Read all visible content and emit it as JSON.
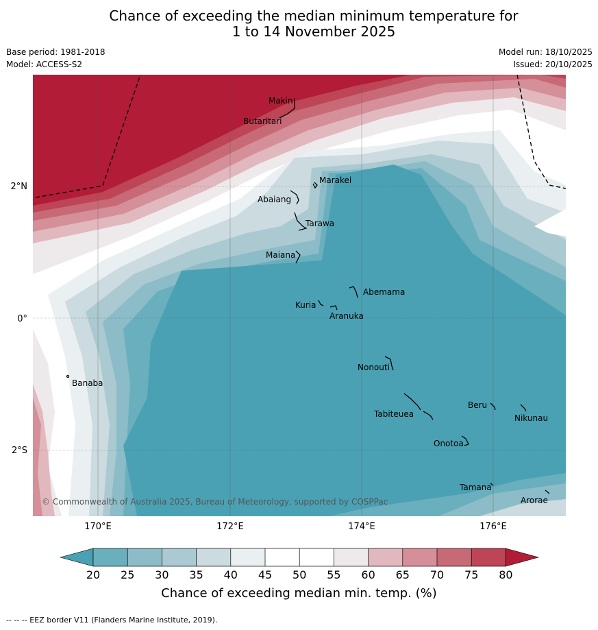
{
  "title_line1": "Chance of exceeding the median minimum temperature for",
  "title_line2": "1 to 14 November 2025",
  "base_period": "Base period: 1981-2018",
  "model": "Model: ACCESS-S2",
  "model_run": "Model run: 18/10/2025",
  "issued": "Issued: 20/10/2025",
  "copyright": "© Commonwealth of Australia 2025, Bureau of Meteorology, supported by COSPPac",
  "footnote": "--  --  -- EEZ border V11 (Flanders Marine Institute, 2019).",
  "map": {
    "lon_labels": [
      "170°E",
      "172°E",
      "174°E",
      "176°E"
    ],
    "lat_labels": [
      "2°N",
      "0°",
      "2°S"
    ],
    "places": [
      {
        "name": "Makin"
      },
      {
        "name": "Butaritari"
      },
      {
        "name": "Marakei"
      },
      {
        "name": "Abaiang"
      },
      {
        "name": "Tarawa"
      },
      {
        "name": "Maiana"
      },
      {
        "name": "Abemama"
      },
      {
        "name": "Kuria"
      },
      {
        "name": "Aranuka"
      },
      {
        "name": "Banaba"
      },
      {
        "name": "Nonouti"
      },
      {
        "name": "Beru"
      },
      {
        "name": "Nikunau"
      },
      {
        "name": "Tabiteuea"
      },
      {
        "name": "Onotoa"
      },
      {
        "name": "Tamana"
      },
      {
        "name": "Arorae"
      }
    ]
  },
  "colorbar": {
    "ticks": [
      "20",
      "25",
      "30",
      "35",
      "40",
      "45",
      "50",
      "55",
      "60",
      "65",
      "70",
      "75",
      "80"
    ],
    "label": "Chance of exceeding median min. temp. (%)",
    "colors": {
      "below20": "#4aa1b3",
      "c20_25": "#6aafbd",
      "c25_30": "#8bbcc7",
      "c30_35": "#aac9d1",
      "c35_40": "#cbdbe0",
      "c40_45": "#eaf0f2",
      "c45_50": "#ffffff",
      "c50_55": "#ffffff",
      "c55_60": "#eeeaeb",
      "c60_65": "#e2b8bf",
      "c65_70": "#d58f99",
      "c70_75": "#c86a76",
      "c75_80": "#bd4555",
      "above80": "#b21c37"
    }
  }
}
